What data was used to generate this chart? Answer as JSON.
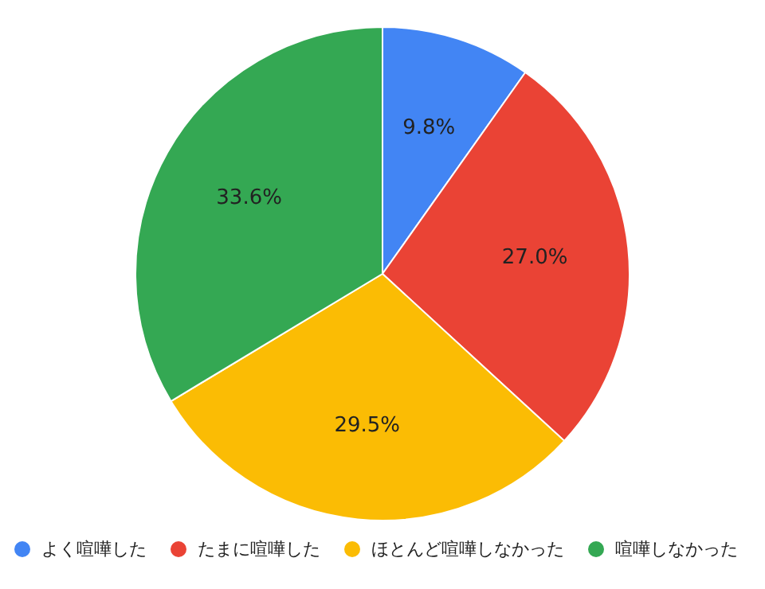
{
  "chart_data": {
    "type": "pie",
    "categories": [
      "よく喧嘩した",
      "たまに喧嘩した",
      "ほとんど喧嘩しなかった",
      "喧嘩しなかった"
    ],
    "values": [
      9.8,
      27.0,
      29.5,
      33.6
    ],
    "value_labels": [
      "9.8%",
      "27.0%",
      "29.5%",
      "33.6%"
    ],
    "colors": [
      "#4285f4",
      "#ea4335",
      "#fbbc04",
      "#34a853"
    ],
    "legend": "bottom"
  }
}
